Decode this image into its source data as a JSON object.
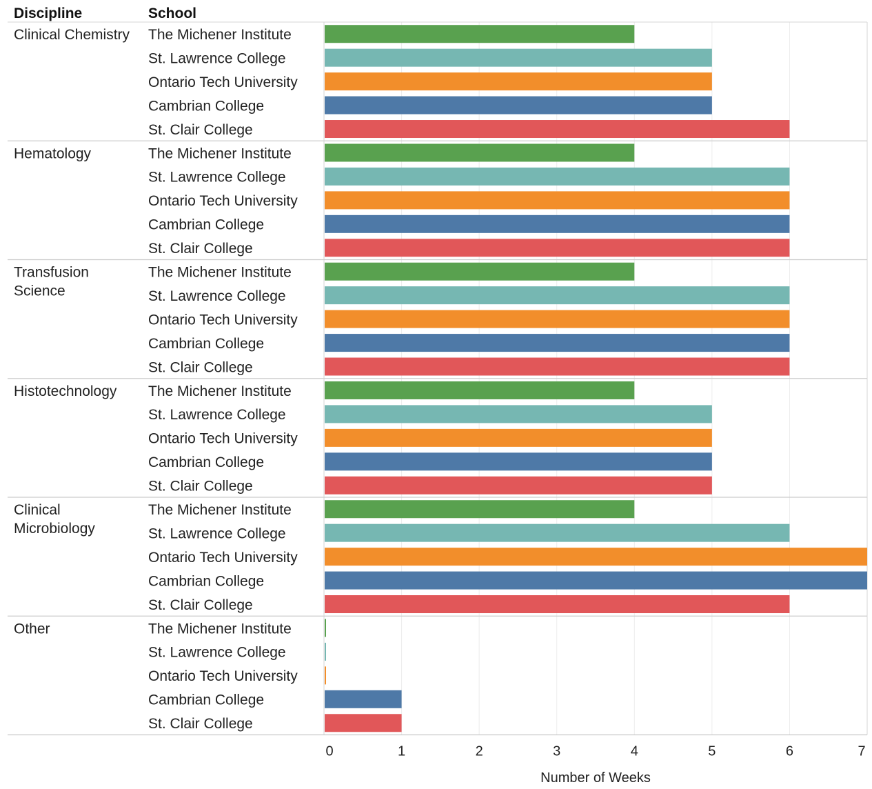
{
  "chart_data": {
    "type": "bar",
    "orientation": "horizontal",
    "column_headers": {
      "discipline": "Discipline",
      "school": "School"
    },
    "xlabel": "Number of Weeks",
    "xlim": [
      0,
      7
    ],
    "xticks": [
      0,
      1,
      2,
      3,
      4,
      5,
      6,
      7
    ],
    "grid": true,
    "schools": [
      {
        "name": "The Michener Institute",
        "color": "#59a14f"
      },
      {
        "name": "St. Lawrence College",
        "color": "#76b7b2"
      },
      {
        "name": "Ontario Tech University",
        "color": "#f28e2b"
      },
      {
        "name": "Cambrian College",
        "color": "#4e79a7"
      },
      {
        "name": "St. Clair College",
        "color": "#e15759"
      }
    ],
    "groups": [
      {
        "discipline": [
          "Clinical Chemistry"
        ],
        "values": [
          4,
          5,
          5,
          5,
          6
        ]
      },
      {
        "discipline": [
          "Hematology"
        ],
        "values": [
          4,
          6,
          6,
          6,
          6
        ]
      },
      {
        "discipline": [
          "Transfusion",
          "Science"
        ],
        "values": [
          4,
          6,
          6,
          6,
          6
        ]
      },
      {
        "discipline": [
          "Histotechnology"
        ],
        "values": [
          4,
          5,
          5,
          5,
          5
        ]
      },
      {
        "discipline": [
          "Clinical",
          "Microbiology"
        ],
        "values": [
          4,
          6,
          7,
          7,
          6
        ]
      },
      {
        "discipline": [
          "Other"
        ],
        "values": [
          0,
          0,
          0,
          1,
          1
        ]
      }
    ]
  }
}
